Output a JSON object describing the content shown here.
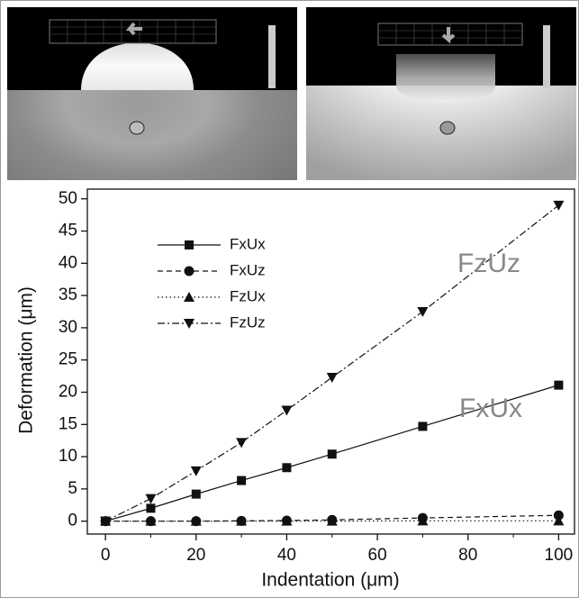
{
  "chart_data": {
    "type": "line",
    "x_label": "Indentation (μm)",
    "y_label": "Deformation (μm)",
    "x": [
      0,
      10,
      20,
      30,
      40,
      50,
      70,
      100
    ],
    "series": [
      {
        "name": "FxUx",
        "color": "#111111",
        "marker": "square",
        "dash": "solid",
        "values": [
          0,
          2.0,
          4.2,
          6.3,
          8.3,
          10.4,
          14.7,
          21.1
        ]
      },
      {
        "name": "FxUz",
        "color": "#111111",
        "marker": "circle",
        "dash": "dashed",
        "values": [
          0,
          0,
          0,
          0.05,
          0.1,
          0.2,
          0.5,
          0.9
        ]
      },
      {
        "name": "FzUx",
        "color": "#111111",
        "marker": "triangle-up",
        "dash": "dotted",
        "values": [
          0,
          0,
          0,
          0,
          0,
          0,
          0.05,
          0.05
        ]
      },
      {
        "name": "FzUz",
        "color": "#111111",
        "marker": "triangle-down",
        "dash": "dashdot",
        "values": [
          0,
          3.5,
          7.8,
          12.2,
          17.2,
          22.3,
          32.5,
          49.0
        ]
      }
    ],
    "annotations": [
      "FzUz",
      "FxUx"
    ],
    "xlim": [
      -4,
      103.5
    ],
    "ylim": [
      -2,
      51.5
    ],
    "xticks": [
      0,
      20,
      40,
      60,
      80,
      100
    ],
    "yticks": [
      0,
      5,
      10,
      15,
      20,
      25,
      30,
      35,
      40,
      45,
      50
    ],
    "legend": "upper-left"
  }
}
